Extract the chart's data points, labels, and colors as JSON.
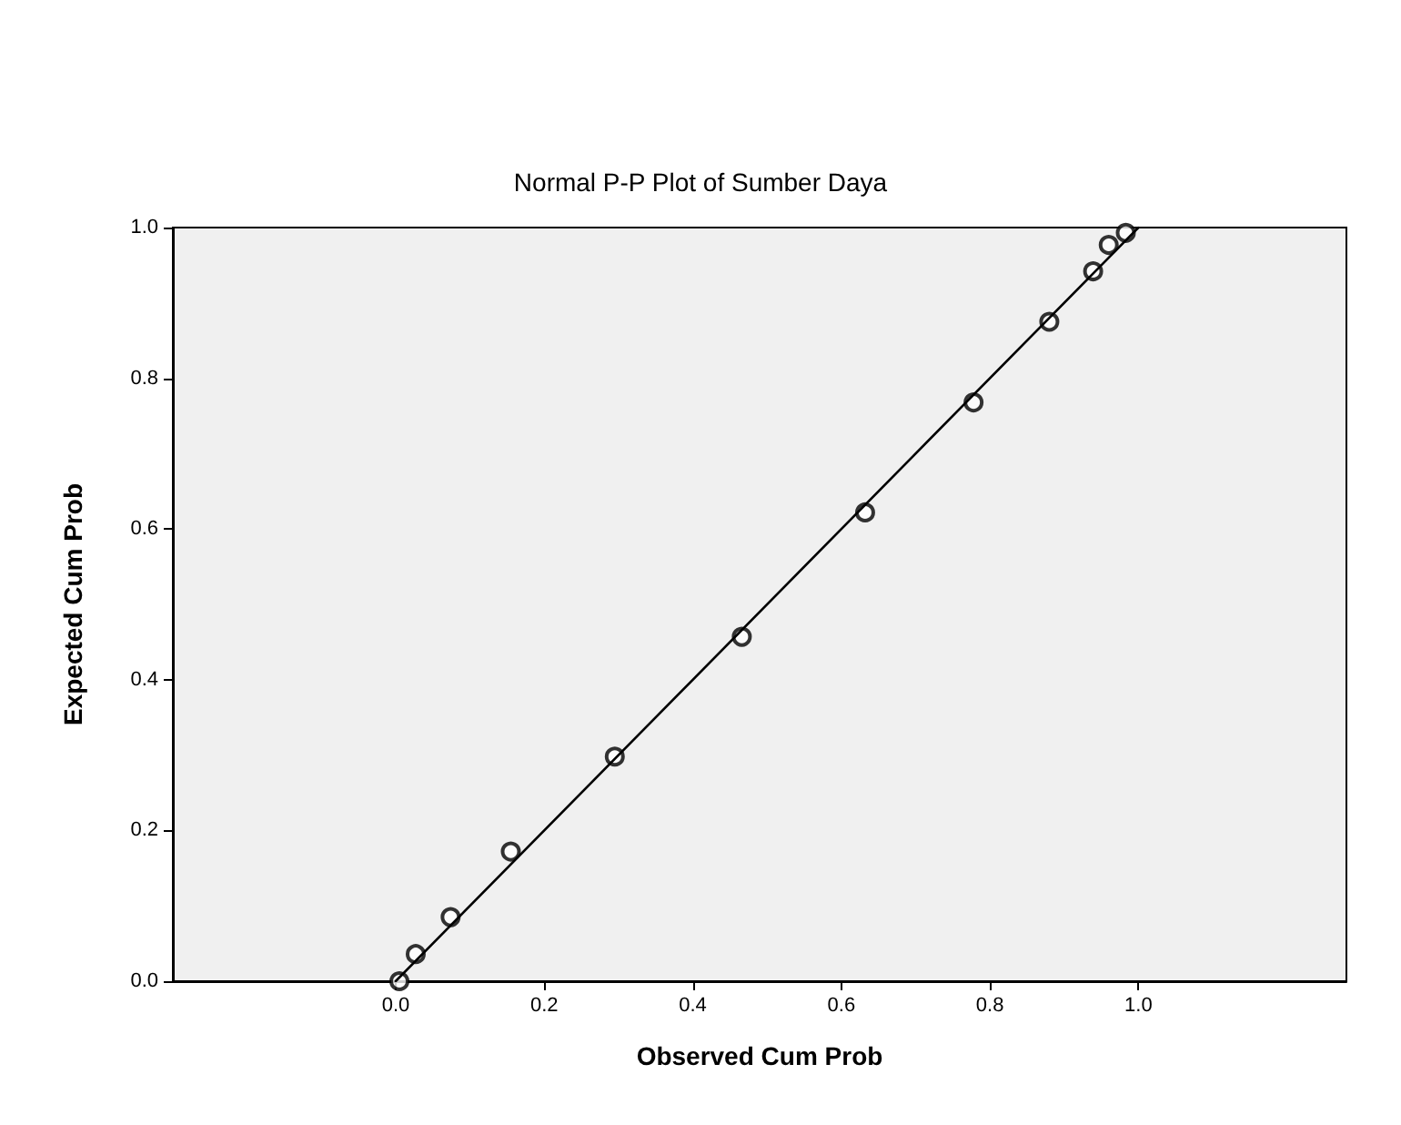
{
  "chart_data": {
    "type": "scatter",
    "title": "Normal P-P Plot of Sumber Daya",
    "xlabel": "Observed Cum Prob",
    "ylabel": "Expected Cum Prob",
    "xlim": [
      -0.3,
      1.28
    ],
    "ylim": [
      0,
      1
    ],
    "xticks": [
      {
        "value": 0,
        "label": "0.0"
      },
      {
        "value": 0.2,
        "label": "0.2"
      },
      {
        "value": 0.4,
        "label": "0.4"
      },
      {
        "value": 0.6,
        "label": "0.6"
      },
      {
        "value": 0.8,
        "label": "0.8"
      },
      {
        "value": 1,
        "label": "1.0"
      }
    ],
    "yticks": [
      {
        "value": 0,
        "label": "0.0"
      },
      {
        "value": 0.2,
        "label": "0.2"
      },
      {
        "value": 0.4,
        "label": "0.4"
      },
      {
        "value": 0.6,
        "label": "0.6"
      },
      {
        "value": 0.8,
        "label": "0.8"
      },
      {
        "value": 1,
        "label": "1.0"
      }
    ],
    "grid": false,
    "marker": "circle",
    "series": [
      {
        "color": "#000000",
        "x": [
          0.005,
          0.027,
          0.074,
          0.155,
          0.295,
          0.466,
          0.632,
          0.778,
          0.88,
          0.939,
          0.96,
          0.983
        ],
        "values": [
          0.0,
          0.036,
          0.085,
          0.172,
          0.298,
          0.457,
          0.622,
          0.768,
          0.875,
          0.942,
          0.977,
          0.993
        ]
      },
      {
        "type": "line",
        "color": "#000000",
        "marker": "none",
        "line_style": "solid",
        "x": [
          0,
          1
        ],
        "values": [
          0,
          1
        ]
      }
    ]
  }
}
